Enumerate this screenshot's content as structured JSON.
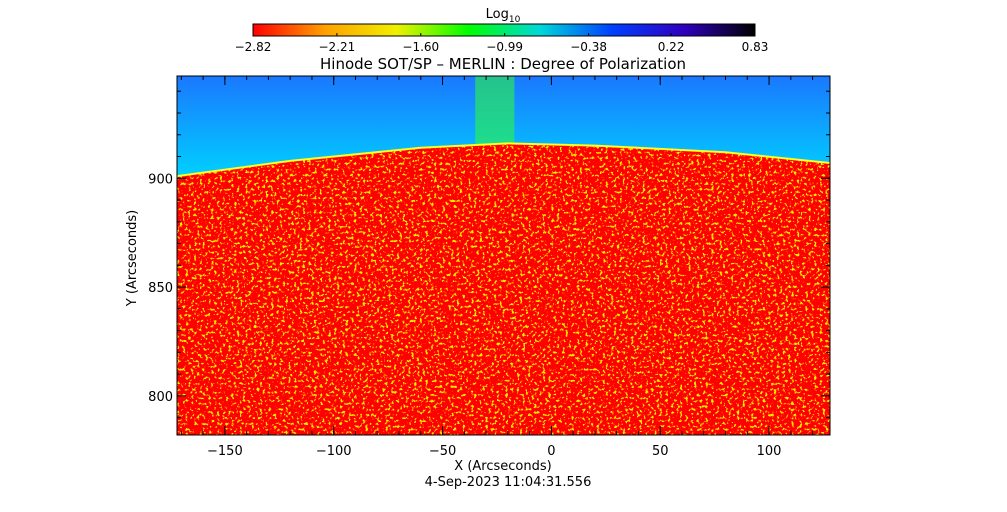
{
  "chart_data": {
    "type": "heatmap",
    "title": "Hinode SOT/SP – MERLIN : Degree of Polarization",
    "xlabel": "X (Arcseconds)",
    "ylabel": "Y (Arcseconds)",
    "timestamp": "4-Sep-2023 11:04:31.556",
    "xlim": [
      -172,
      128
    ],
    "ylim": [
      782,
      947
    ],
    "x_ticks": [
      {
        "value": -150,
        "label": "−150"
      },
      {
        "value": -100,
        "label": "−100"
      },
      {
        "value": -50,
        "label": "−50"
      },
      {
        "value": 0,
        "label": "0"
      },
      {
        "value": 50,
        "label": "50"
      },
      {
        "value": 100,
        "label": "100"
      }
    ],
    "y_ticks": [
      {
        "value": 800,
        "label": "800"
      },
      {
        "value": 850,
        "label": "850"
      },
      {
        "value": 900,
        "label": "900"
      }
    ],
    "colorbar": {
      "label_base": "Log",
      "label_sub": "10",
      "range": [
        -2.82,
        0.83
      ],
      "ticks": [
        {
          "value": -2.82,
          "label": "−2.82"
        },
        {
          "value": -2.21,
          "label": "−2.21"
        },
        {
          "value": -1.6,
          "label": "−1.60"
        },
        {
          "value": -0.99,
          "label": "−0.99"
        },
        {
          "value": -0.38,
          "label": "−0.38"
        },
        {
          "value": 0.22,
          "label": "0.22"
        },
        {
          "value": 0.83,
          "label": "0.83"
        }
      ],
      "colors": [
        "#ff0000",
        "#ffa000",
        "#f0f000",
        "#00ff00",
        "#00d8d8",
        "#0040ff",
        "#3000c0",
        "#000000"
      ]
    },
    "limb_y_at_x": [
      [
        -172,
        901
      ],
      [
        -120,
        908
      ],
      [
        -60,
        914
      ],
      [
        -20,
        916
      ],
      [
        20,
        915
      ],
      [
        80,
        912
      ],
      [
        128,
        907
      ]
    ],
    "regions": [
      {
        "name": "disk",
        "log_polarization": -2.8
      },
      {
        "name": "off-limb",
        "log_polarization_range": [
          -0.99,
          -0.5
        ]
      }
    ]
  }
}
